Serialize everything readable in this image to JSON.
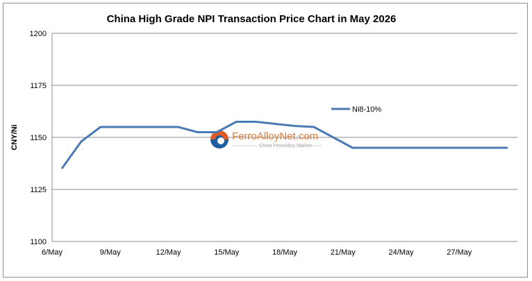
{
  "chart_data": {
    "type": "line",
    "title": "China High Grade NPI Transaction Price Chart in May 2026",
    "ylabel": "CNY/Ni",
    "xlabel": "",
    "ylim": [
      1100,
      1200
    ],
    "yticks": [
      1100,
      1125,
      1150,
      1175,
      1200
    ],
    "x_tick_labels": [
      "6/May",
      "9/May",
      "12/May",
      "15/May",
      "18/May",
      "21/May",
      "24/May",
      "27/May"
    ],
    "x_tick_days": [
      6,
      9,
      12,
      15,
      18,
      21,
      24,
      27
    ],
    "x_range_days": [
      6,
      30
    ],
    "grid": "horizontal",
    "legend_position": "top-right",
    "series": [
      {
        "name": "Ni8-10%",
        "color": "#4a7ab4",
        "x": [
          6.5,
          7.5,
          8.5,
          9.5,
          10.5,
          11.5,
          12.5,
          13.5,
          14.5,
          15.5,
          16.5,
          17.5,
          18.5,
          19.5,
          20.5,
          21.5,
          22.5,
          23.5,
          24.5,
          25.5,
          26.5,
          27.5,
          28.5,
          29.5
        ],
        "values": [
          1135,
          1148,
          1155,
          1155,
          1155,
          1155,
          1155,
          1152.5,
          1152.5,
          1157.5,
          1157.5,
          1156.5,
          1155.5,
          1155,
          1150,
          1145,
          1145,
          1145,
          1145,
          1145,
          1145,
          1145,
          1145,
          1145
        ]
      }
    ]
  },
  "watermark": {
    "main": "FerroAlloyNet.com",
    "sub": "China FerroAlloy Market",
    "accent_color": "#e07b39",
    "icon_colors": [
      "#e05a28",
      "#1f5e9e"
    ]
  }
}
